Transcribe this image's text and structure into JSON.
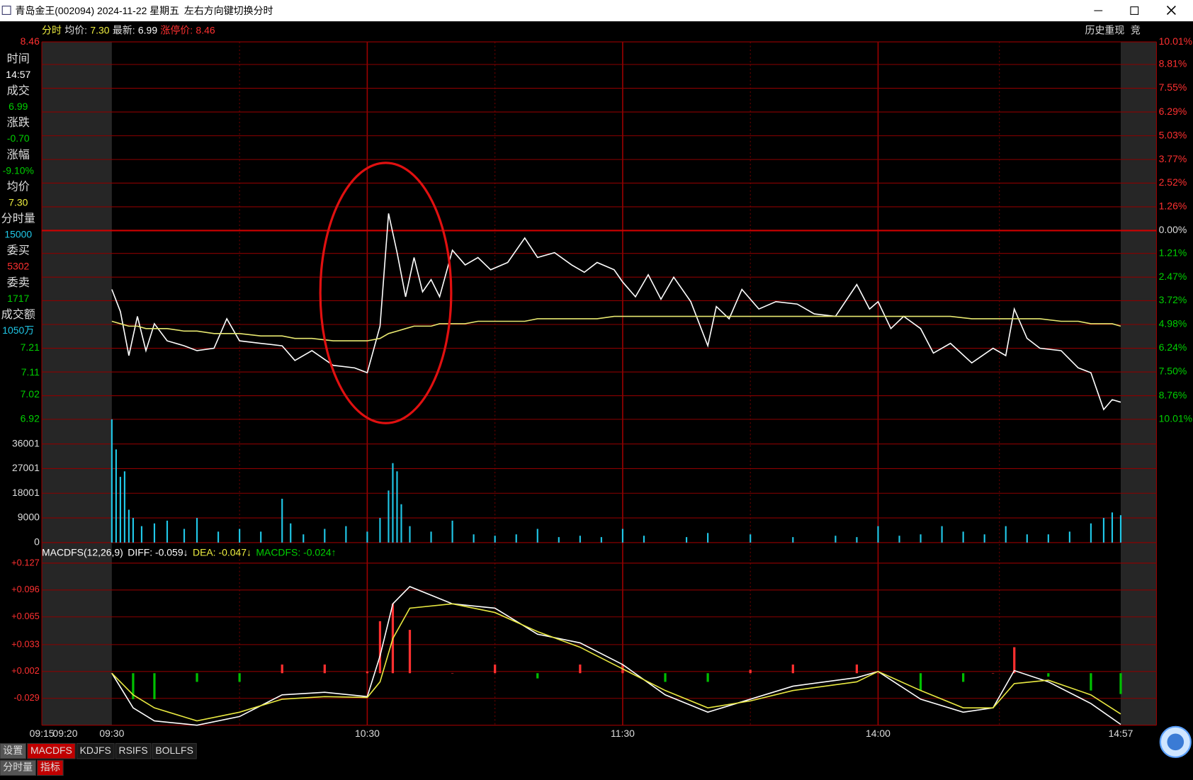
{
  "window": {
    "title": "青岛金王(002094) 2024-11-22 星期五",
    "hint": "左右方向键切换分时"
  },
  "header": [
    {
      "text": "分时",
      "color": "#f0f040"
    },
    {
      "text": "均价:",
      "color": "#e0e0e0"
    },
    {
      "text": "7.30",
      "color": "#f0f040"
    },
    {
      "text": "最新:",
      "color": "#e0e0e0"
    },
    {
      "text": "6.99",
      "color": "#ffffff"
    },
    {
      "text": "涨停价:",
      "color": "#ff3030"
    },
    {
      "text": "8.46",
      "color": "#ff3030"
    }
  ],
  "top_buttons": [
    "历史重现",
    "竞"
  ],
  "info_panel": [
    {
      "label": "时间",
      "value": "14:57",
      "color": "#ffffff"
    },
    {
      "label": "成交",
      "value": "6.99",
      "color": "#00d000"
    },
    {
      "label": "涨跌",
      "value": "-0.70",
      "color": "#00d000"
    },
    {
      "label": "涨幅",
      "value": "-9.10%",
      "color": "#00d000"
    },
    {
      "label": "均价",
      "value": "7.30",
      "color": "#f0f040"
    },
    {
      "label": "分时量",
      "value": "15000",
      "color": "#20c8e8"
    },
    {
      "label": "委买",
      "value": "5302",
      "color": "#ff3030"
    },
    {
      "label": "委卖",
      "value": "1717",
      "color": "#00d000"
    },
    {
      "label": "成交额",
      "value": "1050万",
      "color": "#20c8e8"
    }
  ],
  "macd_header": [
    {
      "text": "MACDFS(12,26,9)",
      "color": "#ffffff"
    },
    {
      "text": "DIFF: -0.059↓",
      "color": "#ffffff"
    },
    {
      "text": "DEA: -0.047↓",
      "color": "#f0f040"
    },
    {
      "text": "MACDFS: -0.024↑",
      "color": "#00d000"
    }
  ],
  "tabs": [
    {
      "text": "设置",
      "color": "#555555"
    },
    {
      "text": "MACDFS",
      "color": "#c00000"
    },
    {
      "text": "KDJFS",
      "color": "#1a1a1a"
    },
    {
      "text": "RSIFS",
      "color": "#1a1a1a"
    },
    {
      "text": "BOLLFS",
      "color": "#1a1a1a"
    }
  ],
  "bottom_tabs": [
    {
      "text": "分时量",
      "color": "#555555"
    },
    {
      "text": "指标",
      "color": "#c00000"
    }
  ],
  "xticks": [
    "09:15",
    "09:20",
    "09:30",
    "10:30",
    "11:30",
    "14:00",
    "14:57"
  ],
  "chart_data": [
    {
      "type": "line",
      "ylim": [
        6.92,
        8.46
      ],
      "yticks": [
        8.46,
        7.21,
        7.11,
        7.02,
        6.92
      ],
      "y2lim": [
        -10.01,
        10.01
      ],
      "y2ticks": [
        {
          "value": 10.01,
          "label": "10.01%"
        },
        {
          "value": 8.81,
          "label": "8.81%"
        },
        {
          "value": 7.55,
          "label": "7.55%"
        },
        {
          "value": 6.29,
          "label": "6.29%"
        },
        {
          "value": 5.03,
          "label": "5.03%"
        },
        {
          "value": 3.77,
          "label": "3.77%"
        },
        {
          "value": 2.52,
          "label": "2.52%"
        },
        {
          "value": 1.26,
          "label": "1.26%"
        },
        {
          "value": 0,
          "label": "0.00%"
        },
        {
          "value": -1.21,
          "label": "1.21%"
        },
        {
          "value": -2.47,
          "label": "2.47%"
        },
        {
          "value": -3.72,
          "label": "3.72%"
        },
        {
          "value": -4.98,
          "label": "4.98%"
        },
        {
          "value": -6.24,
          "label": "6.24%"
        },
        {
          "value": -7.5,
          "label": "7.50%"
        },
        {
          "value": -8.76,
          "label": "8.76%"
        },
        {
          "value": -10.01,
          "label": "10.01%"
        }
      ],
      "x": [
        "09:30",
        "09:32",
        "09:34",
        "09:36",
        "09:38",
        "09:40",
        "09:43",
        "09:47",
        "09:50",
        "09:54",
        "09:57",
        "10:00",
        "10:05",
        "10:10",
        "10:13",
        "10:17",
        "10:22",
        "10:27",
        "10:30",
        "10:33",
        "10:35",
        "10:37",
        "10:39",
        "10:41",
        "10:43",
        "10:45",
        "10:47",
        "10:50",
        "10:53",
        "10:56",
        "10:59",
        "11:03",
        "11:07",
        "11:10",
        "11:14",
        "11:18",
        "11:21",
        "11:24",
        "11:28",
        "11:30",
        "13:03",
        "13:06",
        "13:09",
        "13:12",
        "13:16",
        "13:20",
        "13:22",
        "13:25",
        "13:28",
        "13:32",
        "13:36",
        "13:41",
        "13:45",
        "13:50",
        "13:55",
        "13:58",
        "14:00",
        "14:03",
        "14:06",
        "14:10",
        "14:13",
        "14:17",
        "14:22",
        "14:27",
        "14:30",
        "14:32",
        "14:35",
        "14:38",
        "14:43",
        "14:47",
        "14:50",
        "14:53",
        "14:55",
        "14:57"
      ],
      "series": [
        {
          "color": "#ffffff",
          "values": [
            7.45,
            7.36,
            7.18,
            7.34,
            7.2,
            7.31,
            7.24,
            7.22,
            7.2,
            7.21,
            7.33,
            7.24,
            7.23,
            7.22,
            7.16,
            7.2,
            7.14,
            7.13,
            7.11,
            7.3,
            7.76,
            7.6,
            7.42,
            7.58,
            7.44,
            7.49,
            7.42,
            7.61,
            7.55,
            7.58,
            7.53,
            7.56,
            7.66,
            7.58,
            7.6,
            7.55,
            7.52,
            7.56,
            7.53,
            7.48,
            7.42,
            7.51,
            7.41,
            7.5,
            7.4,
            7.22,
            7.38,
            7.33,
            7.45,
            7.37,
            7.4,
            7.39,
            7.35,
            7.34,
            7.47,
            7.37,
            7.4,
            7.29,
            7.34,
            7.29,
            7.19,
            7.23,
            7.15,
            7.21,
            7.18,
            7.37,
            7.25,
            7.21,
            7.2,
            7.13,
            7.11,
            6.96,
            7.0,
            6.99
          ]
        },
        {
          "color": "#e8e870",
          "values": [
            7.32,
            7.31,
            7.3,
            7.3,
            7.29,
            7.29,
            7.29,
            7.28,
            7.28,
            7.27,
            7.27,
            7.27,
            7.26,
            7.26,
            7.25,
            7.25,
            7.24,
            7.24,
            7.24,
            7.25,
            7.27,
            7.28,
            7.29,
            7.3,
            7.3,
            7.3,
            7.31,
            7.31,
            7.31,
            7.32,
            7.32,
            7.32,
            7.32,
            7.33,
            7.33,
            7.33,
            7.33,
            7.33,
            7.34,
            7.34,
            7.34,
            7.34,
            7.34,
            7.34,
            7.34,
            7.34,
            7.34,
            7.34,
            7.34,
            7.34,
            7.34,
            7.34,
            7.34,
            7.34,
            7.34,
            7.34,
            7.34,
            7.34,
            7.34,
            7.34,
            7.34,
            7.34,
            7.33,
            7.33,
            7.33,
            7.33,
            7.33,
            7.33,
            7.32,
            7.32,
            7.31,
            7.31,
            7.31,
            7.3
          ]
        }
      ]
    },
    {
      "type": "bar",
      "ylim": [
        0,
        45000
      ],
      "yticks": [
        0,
        9000,
        18001,
        27001,
        36001
      ],
      "color": "#20c8e8",
      "x": [
        "09:30",
        "09:31",
        "09:32",
        "09:33",
        "09:34",
        "09:35",
        "09:37",
        "09:40",
        "09:43",
        "09:47",
        "09:50",
        "09:55",
        "10:00",
        "10:05",
        "10:10",
        "10:12",
        "10:15",
        "10:20",
        "10:25",
        "10:30",
        "10:33",
        "10:35",
        "10:36",
        "10:37",
        "10:38",
        "10:40",
        "10:45",
        "10:50",
        "10:55",
        "11:00",
        "11:05",
        "11:10",
        "11:15",
        "11:20",
        "11:25",
        "11:30",
        "13:05",
        "13:15",
        "13:20",
        "13:30",
        "13:40",
        "13:50",
        "13:55",
        "14:00",
        "14:05",
        "14:10",
        "14:15",
        "14:20",
        "14:25",
        "14:30",
        "14:35",
        "14:40",
        "14:45",
        "14:50",
        "14:53",
        "14:55",
        "14:57"
      ],
      "values": [
        45000,
        34000,
        24000,
        26000,
        12000,
        9000,
        6000,
        7000,
        8000,
        5000,
        9000,
        4000,
        5000,
        4000,
        16000,
        7000,
        3000,
        5000,
        6000,
        4000,
        9000,
        19000,
        29000,
        26000,
        14000,
        6000,
        4000,
        8000,
        3000,
        2500,
        3000,
        5000,
        2000,
        2500,
        2000,
        5000,
        2500,
        2000,
        3500,
        3000,
        2000,
        2500,
        2000,
        6000,
        2500,
        3000,
        6000,
        4000,
        3000,
        6000,
        3000,
        3000,
        4000,
        7000,
        9000,
        11000,
        10000
      ]
    },
    {
      "type": "combo",
      "ylim": [
        -0.06,
        0.127
      ],
      "yticks": [
        {
          "value": 0.127,
          "label": "+0.127"
        },
        {
          "value": 0.096,
          "label": "+0.096"
        },
        {
          "value": 0.065,
          "label": "+0.065"
        },
        {
          "value": 0.033,
          "label": "+0.033"
        },
        {
          "value": 0.002,
          "label": "+0.002"
        },
        -0.029
      ],
      "x": [
        "09:30",
        "09:35",
        "09:40",
        "09:50",
        "10:00",
        "10:10",
        "10:20",
        "10:30",
        "10:33",
        "10:36",
        "10:40",
        "10:50",
        "11:00",
        "11:10",
        "11:20",
        "11:30",
        "13:10",
        "13:20",
        "13:30",
        "13:40",
        "13:55",
        "14:00",
        "14:10",
        "14:20",
        "14:27",
        "14:32",
        "14:40",
        "14:50",
        "14:57"
      ],
      "series": [
        {
          "type": "bar",
          "color": "#ff3030",
          "negative_color": "#00c000",
          "values": [
            0,
            -0.03,
            -0.03,
            -0.01,
            -0.01,
            0.01,
            0.01,
            0.002,
            0.06,
            0.08,
            0.05,
            0,
            0.01,
            -0.006,
            0.01,
            0.01,
            -0.01,
            -0.01,
            0.004,
            0.01,
            0.01,
            0,
            -0.02,
            -0.01,
            0,
            0.03,
            -0.004,
            -0.02,
            -0.024
          ]
        },
        {
          "type": "line",
          "color": "#ffffff",
          "values": [
            0,
            -0.04,
            -0.055,
            -0.06,
            -0.05,
            -0.025,
            -0.022,
            -0.027,
            0.02,
            0.08,
            0.1,
            0.08,
            0.075,
            0.045,
            0.035,
            0.01,
            -0.025,
            -0.045,
            -0.03,
            -0.015,
            -0.005,
            0.002,
            -0.03,
            -0.045,
            -0.04,
            0.003,
            -0.01,
            -0.035,
            -0.059
          ]
        },
        {
          "type": "line",
          "color": "#e8e840",
          "values": [
            0,
            -0.025,
            -0.04,
            -0.055,
            -0.045,
            -0.03,
            -0.027,
            -0.028,
            -0.01,
            0.04,
            0.075,
            0.08,
            0.07,
            0.048,
            0.03,
            0.005,
            -0.02,
            -0.04,
            -0.032,
            -0.02,
            -0.01,
            0.002,
            -0.02,
            -0.04,
            -0.04,
            -0.012,
            -0.008,
            -0.025,
            -0.047
          ]
        }
      ]
    }
  ]
}
